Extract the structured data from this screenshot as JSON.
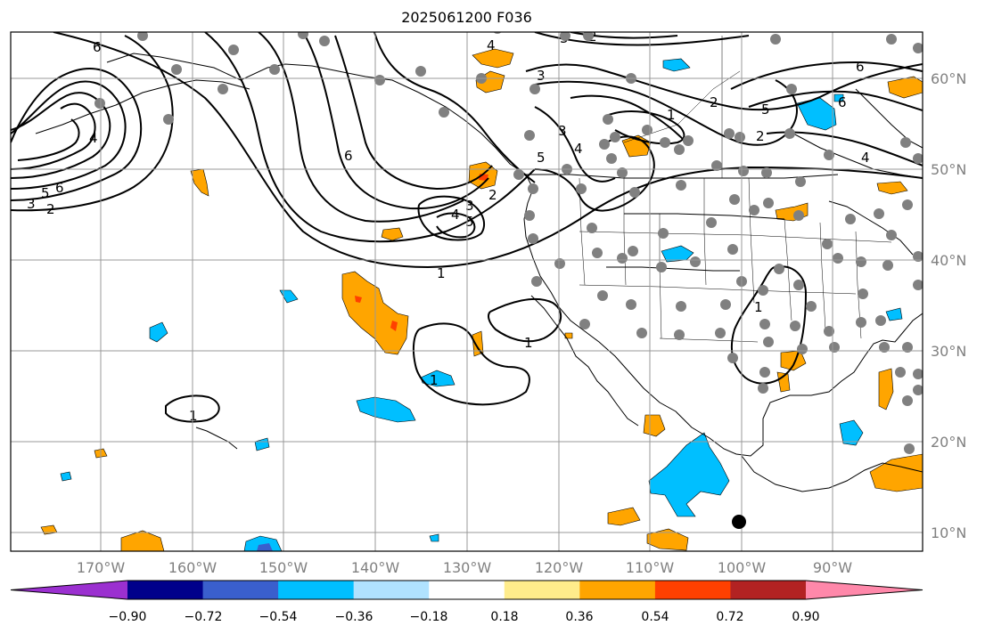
{
  "title": "2025061200 F036",
  "lon_labels": [
    "170°W",
    "160°W",
    "150°W",
    "140°W",
    "130°W",
    "120°W",
    "110°W",
    "100°W",
    "90°W"
  ],
  "lat_labels": [
    "60°N",
    "50°N",
    "40°N",
    "30°N",
    "20°N",
    "10°N"
  ],
  "colorbar": {
    "colors": [
      "#9b30d0",
      "#00008b",
      "#3a5fcd",
      "#00bfff",
      "#b0e2ff",
      "#ffffff",
      "#ffec8b",
      "#ffa500",
      "#ff4000",
      "#b22222",
      "#ff88aa"
    ],
    "tick_labels": [
      "−0.90",
      "−0.72",
      "−0.54",
      "−0.36",
      "−0.18",
      "0.18",
      "0.36",
      "0.54",
      "0.72",
      "0.90"
    ]
  },
  "contour_labels": [
    "6",
    "5",
    "4",
    "3",
    "2",
    "1",
    "6",
    "5",
    "4",
    "3",
    "2",
    "1",
    "3",
    "2",
    "1",
    "6",
    "4",
    "5",
    "1",
    "1",
    "1",
    "1",
    "1",
    "1"
  ],
  "accent": {
    "orange": "#ffa500",
    "blue": "#00bfff",
    "red": "#ff4000",
    "dot": "#808080",
    "station": "#000000"
  }
}
